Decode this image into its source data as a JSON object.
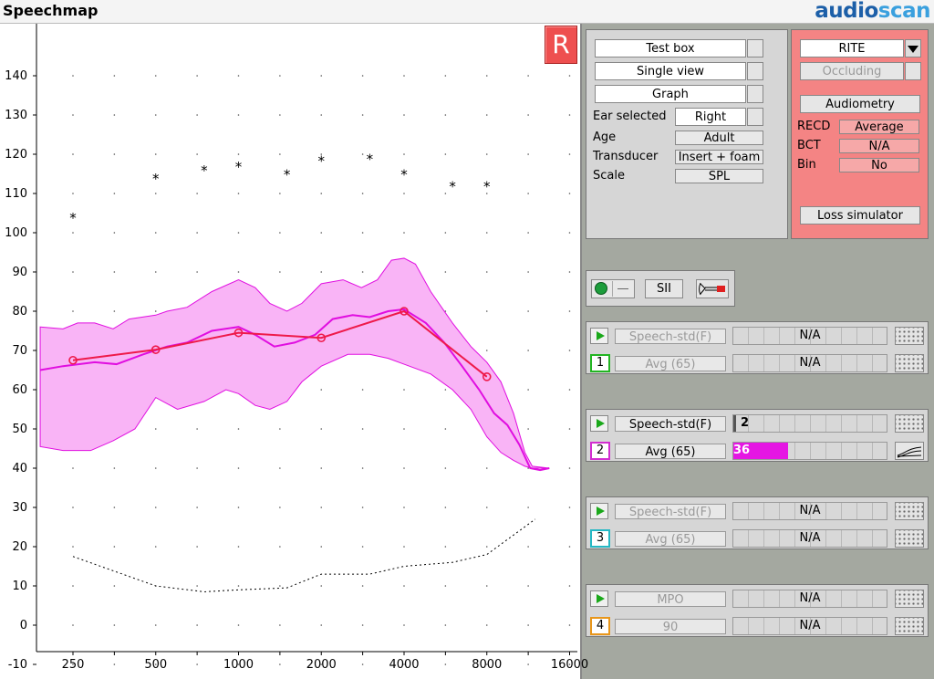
{
  "app": {
    "title": "Speechmap",
    "logo_a": "audio",
    "logo_b": "scan"
  },
  "graph": {
    "ear_badge": "R",
    "y_ticks": [
      140,
      130,
      120,
      110,
      100,
      90,
      80,
      70,
      60,
      50,
      40,
      30,
      20,
      10,
      0,
      -10
    ],
    "x_ticks": [
      "250",
      "500",
      "1000",
      "2000",
      "4000",
      "8000",
      "16000"
    ],
    "ucl_stars": [
      [
        250,
        104
      ],
      [
        500,
        114
      ],
      [
        750,
        116
      ],
      [
        1000,
        117
      ],
      [
        1500,
        115
      ],
      [
        2000,
        118.5
      ],
      [
        3000,
        119
      ],
      [
        4000,
        115
      ],
      [
        6000,
        112
      ],
      [
        8000,
        112
      ]
    ],
    "threshold": [
      [
        250,
        17.5
      ],
      [
        500,
        10
      ],
      [
        750,
        8.5
      ],
      [
        1000,
        9
      ],
      [
        1500,
        9.5
      ],
      [
        2000,
        13
      ],
      [
        3000,
        13
      ],
      [
        4000,
        15
      ],
      [
        6000,
        16
      ],
      [
        8000,
        18
      ],
      [
        12000,
        27
      ]
    ],
    "target_points": [
      [
        250,
        67.5
      ],
      [
        500,
        70.2
      ],
      [
        1000,
        74.5
      ],
      [
        2000,
        73.2
      ],
      [
        4000,
        80
      ],
      [
        8000,
        63.3
      ]
    ],
    "ltass": [
      [
        190,
        65
      ],
      [
        230,
        66
      ],
      [
        300,
        67
      ],
      [
        360,
        66.5
      ],
      [
        450,
        69
      ],
      [
        550,
        71
      ],
      [
        650,
        72
      ],
      [
        800,
        75
      ],
      [
        1000,
        76
      ],
      [
        1150,
        74
      ],
      [
        1350,
        71
      ],
      [
        1600,
        72
      ],
      [
        1900,
        74
      ],
      [
        2200,
        78
      ],
      [
        2600,
        79
      ],
      [
        3000,
        78.5
      ],
      [
        3500,
        80
      ],
      [
        4000,
        80.5
      ],
      [
        4800,
        77
      ],
      [
        5600,
        72
      ],
      [
        6500,
        66
      ],
      [
        7500,
        60
      ],
      [
        8500,
        54
      ],
      [
        9500,
        51
      ],
      [
        10500,
        46
      ],
      [
        11500,
        40
      ],
      [
        12500,
        39.5
      ],
      [
        13500,
        40
      ]
    ],
    "band_upper": [
      [
        190,
        76
      ],
      [
        230,
        75.5
      ],
      [
        260,
        77
      ],
      [
        300,
        77
      ],
      [
        350,
        75.5
      ],
      [
        400,
        78
      ],
      [
        500,
        79
      ],
      [
        550,
        80
      ],
      [
        650,
        81
      ],
      [
        800,
        85
      ],
      [
        1000,
        88
      ],
      [
        1150,
        86
      ],
      [
        1300,
        82
      ],
      [
        1500,
        80
      ],
      [
        1700,
        82
      ],
      [
        2000,
        87
      ],
      [
        2400,
        88
      ],
      [
        2800,
        86
      ],
      [
        3200,
        88
      ],
      [
        3600,
        93
      ],
      [
        4000,
        93.5
      ],
      [
        4400,
        92
      ],
      [
        5000,
        85
      ],
      [
        6000,
        77
      ],
      [
        7000,
        71
      ],
      [
        8000,
        67
      ],
      [
        9000,
        62
      ],
      [
        10000,
        54
      ],
      [
        11000,
        44
      ],
      [
        11700,
        40.5
      ],
      [
        13500,
        40
      ]
    ],
    "band_lower": [
      [
        13500,
        40
      ],
      [
        11700,
        40
      ],
      [
        11000,
        40.5
      ],
      [
        10000,
        42
      ],
      [
        9000,
        44
      ],
      [
        8000,
        48
      ],
      [
        7000,
        55
      ],
      [
        6000,
        60
      ],
      [
        5000,
        64
      ],
      [
        4000,
        66.5
      ],
      [
        3500,
        68
      ],
      [
        3000,
        69
      ],
      [
        2500,
        69
      ],
      [
        2000,
        66
      ],
      [
        1700,
        62
      ],
      [
        1500,
        57
      ],
      [
        1300,
        55
      ],
      [
        1150,
        56
      ],
      [
        1000,
        59
      ],
      [
        900,
        60
      ],
      [
        750,
        57
      ],
      [
        600,
        55
      ],
      [
        500,
        58
      ],
      [
        420,
        50
      ],
      [
        350,
        47
      ],
      [
        290,
        44.5
      ],
      [
        230,
        44.5
      ],
      [
        190,
        45.5
      ]
    ]
  },
  "setup": {
    "test_box": "Test box",
    "single_view": "Single view",
    "graph": "Graph",
    "ear_selected_label": "Ear selected",
    "ear_selected_value": "Right",
    "age_label": "Age",
    "age_value": "Adult",
    "transducer_label": "Transducer",
    "transducer_value": "Insert + foam",
    "scale_label": "Scale",
    "scale_value": "SPL"
  },
  "device": {
    "style": "RITE",
    "occluding": "Occluding",
    "audiometry": "Audiometry",
    "recd_label": "RECD",
    "recd_value": "Average",
    "bct_label": "BCT",
    "bct_value": "N/A",
    "bin_label": "Bin",
    "bin_value": "No",
    "loss_simulator": "Loss simulator"
  },
  "toolbar": {
    "sii": "SII"
  },
  "tests": [
    {
      "number": "1",
      "number_color": "#22b522",
      "enabled": false,
      "stimulus": "Speech-std(F)",
      "level": "Avg (65)",
      "sii_text": "N/A",
      "level_text": "N/A",
      "fill": 0
    },
    {
      "number": "2",
      "number_color": "#d22dd0",
      "enabled": true,
      "stimulus": "Speech-std(F)",
      "level": "Avg (65)",
      "sii_text": "2",
      "level_text": "36",
      "fill": 0.36
    },
    {
      "number": "3",
      "number_color": "#25b8c4",
      "enabled": false,
      "stimulus": "Speech-std(F)",
      "level": "Avg (65)",
      "sii_text": "N/A",
      "level_text": "N/A",
      "fill": 0
    },
    {
      "number": "4",
      "number_color": "#e8961a",
      "enabled": false,
      "stimulus": "MPO",
      "level": "90",
      "sii_text": "N/A",
      "level_text": "N/A",
      "fill": 0
    }
  ]
}
